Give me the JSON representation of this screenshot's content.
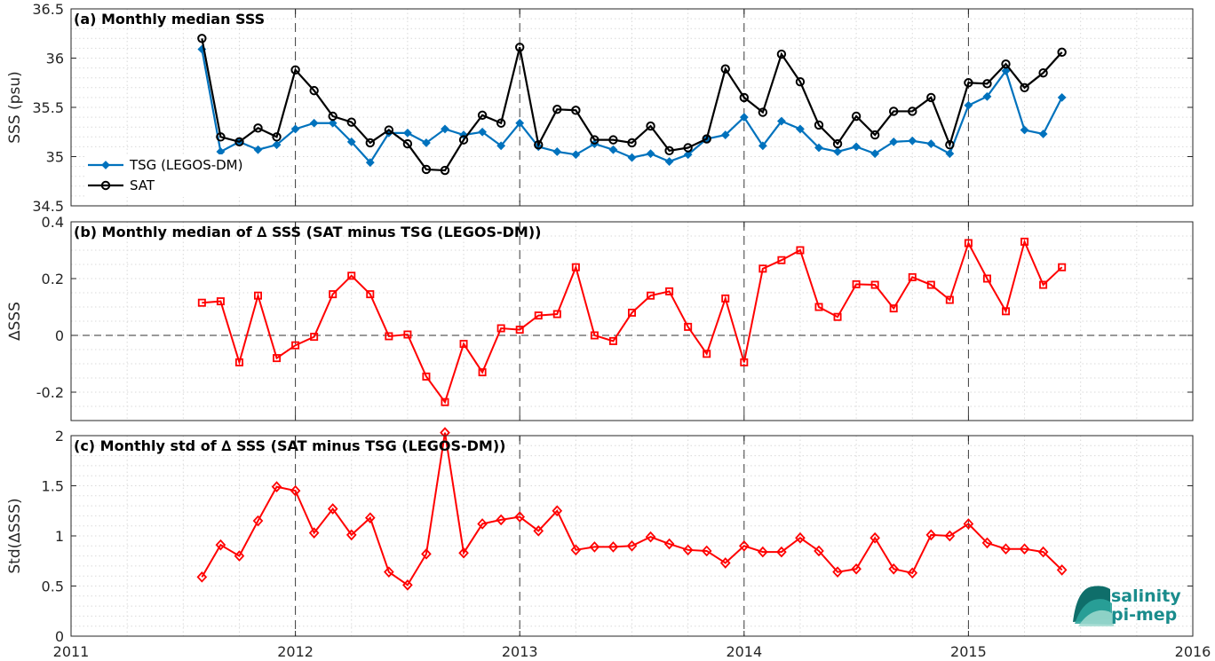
{
  "colors": {
    "tsg": "#0072BD",
    "sat": "#000000",
    "delta": "#FF0000",
    "logo_text": "#1a8c8c",
    "logo_mark": "#2ba39b"
  },
  "logo": {
    "line1": "salinity",
    "line2": "pi-mep"
  },
  "chart_data": [
    {
      "type": "line",
      "title": "(a) Monthly median SSS",
      "xlabel": "",
      "ylabel": "SSS (psu)",
      "xlim": [
        2011,
        2016
      ],
      "ylim": [
        34.5,
        36.5
      ],
      "grid": true,
      "legend_position": "bottom-left",
      "x_ticks": [
        "2011",
        "2012",
        "2013",
        "2014",
        "2015",
        "2016"
      ],
      "y_ticks": [
        "34.5",
        "35",
        "35.5",
        "36",
        "36.5"
      ],
      "x": [
        "2011-08",
        "2011-09",
        "2011-10",
        "2011-11",
        "2011-12",
        "2012-01",
        "2012-02",
        "2012-03",
        "2012-04",
        "2012-05",
        "2012-06",
        "2012-07",
        "2012-08",
        "2012-09",
        "2012-10",
        "2012-11",
        "2012-12",
        "2013-01",
        "2013-02",
        "2013-03",
        "2013-04",
        "2013-05",
        "2013-06",
        "2013-07",
        "2013-08",
        "2013-09",
        "2013-10",
        "2013-11",
        "2013-12",
        "2014-01",
        "2014-02",
        "2014-03",
        "2014-04",
        "2014-05",
        "2014-06",
        "2014-07",
        "2014-08",
        "2014-09",
        "2014-10",
        "2014-11",
        "2014-12",
        "2015-01",
        "2015-02",
        "2015-03",
        "2015-04",
        "2015-05",
        "2015-06"
      ],
      "series": [
        {
          "name": "TSG (LEGOS-DM)",
          "marker": "diamond",
          "values": [
            36.09,
            35.05,
            35.15,
            35.07,
            35.12,
            35.28,
            35.34,
            35.34,
            35.15,
            34.94,
            35.24,
            35.24,
            35.14,
            35.28,
            35.22,
            35.25,
            35.11,
            35.34,
            35.1,
            35.05,
            35.02,
            35.13,
            35.07,
            34.99,
            35.03,
            34.95,
            35.02,
            35.18,
            35.22,
            35.4,
            35.11,
            35.36,
            35.28,
            35.09,
            35.05,
            35.1,
            35.03,
            35.15,
            35.16,
            35.13,
            35.03,
            35.52,
            35.61,
            35.87,
            35.27,
            35.23,
            35.6
          ]
        },
        {
          "name": "SAT",
          "marker": "circle",
          "values": [
            36.2,
            35.2,
            35.15,
            35.29,
            35.2,
            35.88,
            35.67,
            35.41,
            35.35,
            35.14,
            35.27,
            35.13,
            34.87,
            34.86,
            35.17,
            35.42,
            35.34,
            36.11,
            35.12,
            35.48,
            35.47,
            35.17,
            35.17,
            35.14,
            35.31,
            35.06,
            35.09,
            35.18,
            35.89,
            35.6,
            35.45,
            36.04,
            35.76,
            35.32,
            35.13,
            35.41,
            35.22,
            35.46,
            35.46,
            35.6,
            35.12,
            35.75,
            35.74,
            35.94,
            35.7,
            35.85,
            36.06
          ]
        }
      ]
    },
    {
      "type": "line",
      "title": "(b) Monthly median of ∆ SSS (SAT minus TSG (LEGOS-DM))",
      "xlabel": "",
      "ylabel": "∆SSS",
      "xlim": [
        2011,
        2016
      ],
      "ylim": [
        -0.3,
        0.4
      ],
      "grid": true,
      "zero_line": true,
      "y_ticks": [
        "-0.2",
        "0",
        "0.2",
        "0.4"
      ],
      "x": [
        "2011-08",
        "2011-09",
        "2011-10",
        "2011-11",
        "2011-12",
        "2012-01",
        "2012-02",
        "2012-03",
        "2012-04",
        "2012-05",
        "2012-06",
        "2012-07",
        "2012-08",
        "2012-09",
        "2012-10",
        "2012-11",
        "2012-12",
        "2013-01",
        "2013-02",
        "2013-03",
        "2013-04",
        "2013-05",
        "2013-06",
        "2013-07",
        "2013-08",
        "2013-09",
        "2013-10",
        "2013-11",
        "2013-12",
        "2014-01",
        "2014-02",
        "2014-03",
        "2014-04",
        "2014-05",
        "2014-06",
        "2014-07",
        "2014-08",
        "2014-09",
        "2014-10",
        "2014-11",
        "2014-12",
        "2015-01",
        "2015-02",
        "2015-03",
        "2015-04",
        "2015-05",
        "2015-06"
      ],
      "series": [
        {
          "marker": "square",
          "values": [
            0.115,
            0.12,
            -0.095,
            0.14,
            -0.08,
            -0.035,
            -0.005,
            0.145,
            0.21,
            0.145,
            -0.003,
            0.003,
            -0.145,
            -0.235,
            -0.03,
            -0.13,
            0.025,
            0.02,
            0.07,
            0.075,
            0.24,
            0.0,
            -0.02,
            0.08,
            0.14,
            0.155,
            0.03,
            -0.065,
            0.13,
            -0.095,
            0.235,
            0.265,
            0.3,
            0.1,
            0.065,
            0.18,
            0.178,
            0.095,
            0.205,
            0.178,
            0.125,
            0.325,
            0.2,
            0.085,
            0.33,
            0.178,
            0.24
          ]
        }
      ]
    },
    {
      "type": "line",
      "title": "(c) Monthly std of ∆ SSS (SAT minus TSG (LEGOS-DM))",
      "xlabel": "",
      "ylabel": "Std(∆SSS)",
      "xlim": [
        2011,
        2016
      ],
      "ylim": [
        0,
        2
      ],
      "grid": true,
      "y_ticks": [
        "0",
        "0.5",
        "1",
        "1.5",
        "2"
      ],
      "x": [
        "2011-08",
        "2011-09",
        "2011-10",
        "2011-11",
        "2011-12",
        "2012-01",
        "2012-02",
        "2012-03",
        "2012-04",
        "2012-05",
        "2012-06",
        "2012-07",
        "2012-08",
        "2012-09",
        "2012-10",
        "2012-11",
        "2012-12",
        "2013-01",
        "2013-02",
        "2013-03",
        "2013-04",
        "2013-05",
        "2013-06",
        "2013-07",
        "2013-08",
        "2013-09",
        "2013-10",
        "2013-11",
        "2013-12",
        "2014-01",
        "2014-02",
        "2014-03",
        "2014-04",
        "2014-05",
        "2014-06",
        "2014-07",
        "2014-08",
        "2014-09",
        "2014-10",
        "2014-11",
        "2014-12",
        "2015-01",
        "2015-02",
        "2015-03",
        "2015-04",
        "2015-05",
        "2015-06"
      ],
      "series": [
        {
          "marker": "diamond",
          "values": [
            0.59,
            0.91,
            0.8,
            1.15,
            1.49,
            1.45,
            1.03,
            1.27,
            1.01,
            1.18,
            0.64,
            0.51,
            0.82,
            2.03,
            0.83,
            1.12,
            1.16,
            1.19,
            1.05,
            1.25,
            0.86,
            0.89,
            0.89,
            0.9,
            0.99,
            0.92,
            0.86,
            0.85,
            0.73,
            0.9,
            0.84,
            0.84,
            0.98,
            0.85,
            0.64,
            0.67,
            0.98,
            0.67,
            0.63,
            1.01,
            1.0,
            1.12,
            0.93,
            0.87,
            0.87,
            0.84,
            0.66
          ]
        }
      ]
    }
  ]
}
